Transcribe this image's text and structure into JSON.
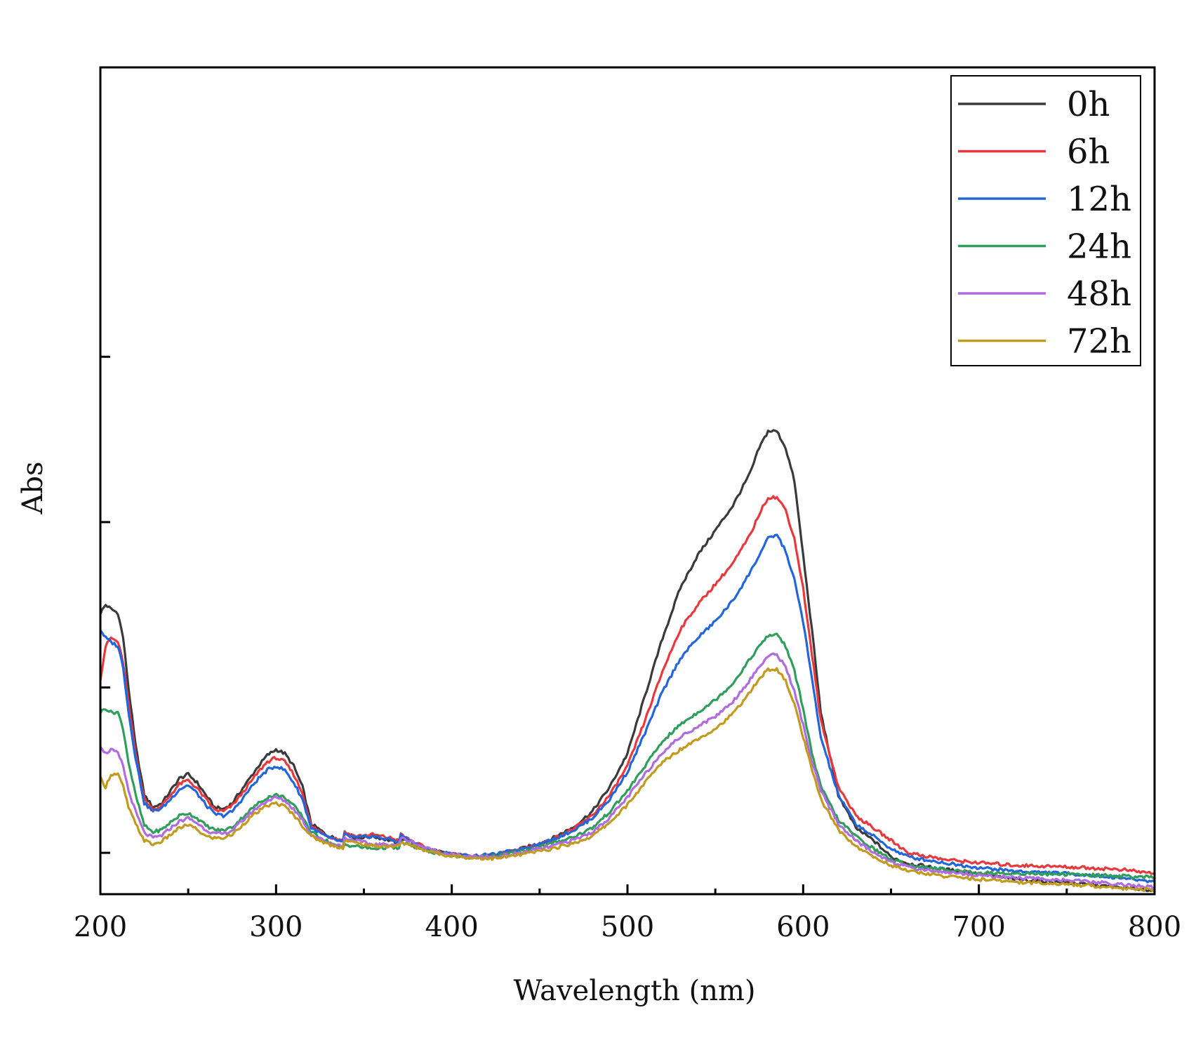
{
  "chart_data": {
    "type": "line",
    "title": "",
    "xlabel": "Wavelength (nm)",
    "ylabel": "Abs",
    "xlim": [
      200,
      800
    ],
    "ylim": [
      0,
      1.0
    ],
    "xticks": [
      200,
      300,
      400,
      500,
      600,
      700,
      800
    ],
    "xtick_labels": [
      "200",
      "300",
      "400",
      "500",
      "600",
      "700",
      "800"
    ],
    "xminor_ticks": [
      250,
      350,
      450,
      550,
      650,
      750
    ],
    "yticks": [
      0.05,
      0.25,
      0.45,
      0.65
    ],
    "ytick_labels": [
      "",
      "",
      "",
      ""
    ],
    "grid": false,
    "legend_position": "top-right",
    "series": [
      {
        "name": "0h",
        "color": "#3a3a3a",
        "x": [
          200,
          203,
          206,
          210,
          213,
          216,
          220,
          225,
          230,
          235,
          240,
          245,
          250,
          255,
          260,
          265,
          270,
          275,
          280,
          285,
          290,
          295,
          300,
          305,
          310,
          315,
          320,
          330,
          338,
          339,
          345,
          355,
          365,
          370,
          371,
          375,
          385,
          395,
          410,
          425,
          440,
          455,
          470,
          480,
          490,
          500,
          510,
          520,
          530,
          540,
          550,
          560,
          570,
          575,
          580,
          585,
          590,
          595,
          600,
          605,
          610,
          620,
          630,
          640,
          650,
          660,
          680,
          700,
          720,
          750,
          780,
          800
        ],
        "y": [
          0.34,
          0.35,
          0.345,
          0.34,
          0.31,
          0.25,
          0.18,
          0.12,
          0.105,
          0.11,
          0.125,
          0.14,
          0.145,
          0.135,
          0.12,
          0.105,
          0.103,
          0.11,
          0.125,
          0.14,
          0.155,
          0.168,
          0.175,
          0.17,
          0.155,
          0.13,
          0.085,
          0.07,
          0.065,
          0.075,
          0.068,
          0.07,
          0.065,
          0.06,
          0.068,
          0.065,
          0.055,
          0.05,
          0.045,
          0.047,
          0.055,
          0.065,
          0.082,
          0.1,
          0.13,
          0.17,
          0.24,
          0.31,
          0.37,
          0.41,
          0.44,
          0.47,
          0.51,
          0.54,
          0.56,
          0.56,
          0.54,
          0.5,
          0.41,
          0.32,
          0.22,
          0.12,
          0.08,
          0.065,
          0.045,
          0.037,
          0.03,
          0.025,
          0.018,
          0.014,
          0.008,
          0.005
        ]
      },
      {
        "name": "6h",
        "color": "#e8383d",
        "x": [
          200,
          203,
          206,
          210,
          213,
          216,
          220,
          225,
          230,
          235,
          240,
          245,
          250,
          255,
          260,
          265,
          270,
          275,
          280,
          285,
          290,
          295,
          300,
          305,
          310,
          315,
          320,
          330,
          338,
          339,
          345,
          355,
          365,
          370,
          371,
          375,
          385,
          395,
          410,
          425,
          440,
          455,
          470,
          480,
          490,
          500,
          510,
          520,
          530,
          540,
          550,
          560,
          570,
          575,
          580,
          585,
          590,
          595,
          600,
          605,
          610,
          620,
          630,
          640,
          650,
          660,
          680,
          700,
          720,
          750,
          780,
          800
        ],
        "y": [
          0.26,
          0.3,
          0.31,
          0.305,
          0.28,
          0.23,
          0.17,
          0.115,
          0.102,
          0.107,
          0.12,
          0.133,
          0.138,
          0.128,
          0.115,
          0.102,
          0.1,
          0.107,
          0.12,
          0.134,
          0.148,
          0.16,
          0.165,
          0.16,
          0.145,
          0.122,
          0.082,
          0.07,
          0.065,
          0.075,
          0.07,
          0.072,
          0.068,
          0.065,
          0.072,
          0.067,
          0.056,
          0.05,
          0.045,
          0.047,
          0.055,
          0.064,
          0.08,
          0.095,
          0.12,
          0.155,
          0.21,
          0.27,
          0.32,
          0.35,
          0.375,
          0.4,
          0.435,
          0.46,
          0.48,
          0.48,
          0.465,
          0.43,
          0.37,
          0.29,
          0.21,
          0.13,
          0.095,
          0.08,
          0.065,
          0.05,
          0.042,
          0.038,
          0.035,
          0.033,
          0.03,
          0.025
        ]
      },
      {
        "name": "12h",
        "color": "#2266dd",
        "x": [
          200,
          203,
          206,
          210,
          213,
          216,
          220,
          225,
          230,
          235,
          240,
          245,
          250,
          255,
          260,
          265,
          270,
          275,
          280,
          285,
          290,
          295,
          300,
          305,
          310,
          315,
          320,
          330,
          338,
          339,
          345,
          355,
          365,
          370,
          371,
          375,
          385,
          395,
          410,
          425,
          440,
          455,
          470,
          480,
          490,
          500,
          510,
          520,
          530,
          540,
          550,
          560,
          570,
          575,
          580,
          585,
          590,
          595,
          600,
          605,
          610,
          620,
          630,
          640,
          650,
          660,
          680,
          700,
          720,
          750,
          780,
          800
        ],
        "y": [
          0.32,
          0.31,
          0.305,
          0.3,
          0.275,
          0.22,
          0.165,
          0.11,
          0.1,
          0.104,
          0.115,
          0.127,
          0.132,
          0.122,
          0.108,
          0.097,
          0.095,
          0.1,
          0.113,
          0.127,
          0.14,
          0.15,
          0.155,
          0.15,
          0.135,
          0.115,
          0.08,
          0.068,
          0.063,
          0.072,
          0.068,
          0.07,
          0.066,
          0.063,
          0.072,
          0.066,
          0.055,
          0.05,
          0.046,
          0.048,
          0.055,
          0.064,
          0.078,
          0.092,
          0.115,
          0.148,
          0.195,
          0.245,
          0.285,
          0.31,
          0.33,
          0.355,
          0.39,
          0.41,
          0.43,
          0.435,
          0.415,
          0.38,
          0.33,
          0.26,
          0.19,
          0.12,
          0.085,
          0.07,
          0.055,
          0.045,
          0.038,
          0.032,
          0.028,
          0.025,
          0.02,
          0.015
        ]
      },
      {
        "name": "24h",
        "color": "#2e9e5a",
        "x": [
          200,
          203,
          206,
          210,
          213,
          216,
          220,
          225,
          230,
          235,
          240,
          245,
          250,
          255,
          260,
          265,
          270,
          275,
          280,
          285,
          290,
          295,
          300,
          305,
          310,
          315,
          320,
          330,
          338,
          339,
          345,
          355,
          365,
          370,
          371,
          375,
          385,
          395,
          410,
          425,
          440,
          455,
          470,
          480,
          490,
          500,
          510,
          520,
          530,
          540,
          550,
          560,
          570,
          575,
          580,
          585,
          590,
          595,
          600,
          605,
          610,
          620,
          630,
          640,
          650,
          660,
          680,
          700,
          720,
          750,
          780,
          800
        ],
        "y": [
          0.22,
          0.225,
          0.22,
          0.22,
          0.2,
          0.16,
          0.12,
          0.083,
          0.075,
          0.078,
          0.087,
          0.095,
          0.098,
          0.092,
          0.083,
          0.078,
          0.077,
          0.081,
          0.091,
          0.101,
          0.11,
          0.117,
          0.12,
          0.117,
          0.107,
          0.094,
          0.075,
          0.063,
          0.055,
          0.06,
          0.058,
          0.055,
          0.057,
          0.055,
          0.063,
          0.06,
          0.053,
          0.048,
          0.045,
          0.046,
          0.052,
          0.06,
          0.07,
          0.08,
          0.1,
          0.125,
          0.155,
          0.185,
          0.205,
          0.22,
          0.235,
          0.255,
          0.285,
          0.3,
          0.312,
          0.315,
          0.3,
          0.27,
          0.225,
          0.17,
          0.13,
          0.09,
          0.07,
          0.055,
          0.042,
          0.035,
          0.03,
          0.026,
          0.025,
          0.024,
          0.022,
          0.02
        ]
      },
      {
        "name": "48h",
        "color": "#b06be0",
        "x": [
          200,
          203,
          206,
          210,
          213,
          216,
          220,
          225,
          230,
          235,
          240,
          245,
          250,
          255,
          260,
          265,
          270,
          275,
          280,
          285,
          290,
          295,
          300,
          305,
          310,
          315,
          320,
          330,
          338,
          339,
          345,
          355,
          365,
          370,
          371,
          375,
          385,
          395,
          410,
          425,
          440,
          455,
          470,
          480,
          490,
          500,
          510,
          520,
          530,
          540,
          550,
          560,
          570,
          575,
          580,
          585,
          590,
          595,
          600,
          605,
          610,
          620,
          630,
          640,
          650,
          660,
          680,
          700,
          720,
          750,
          780,
          800
        ],
        "y": [
          0.18,
          0.17,
          0.175,
          0.17,
          0.155,
          0.125,
          0.1,
          0.074,
          0.068,
          0.071,
          0.08,
          0.088,
          0.092,
          0.086,
          0.078,
          0.073,
          0.073,
          0.077,
          0.087,
          0.097,
          0.106,
          0.113,
          0.117,
          0.113,
          0.103,
          0.09,
          0.072,
          0.062,
          0.058,
          0.068,
          0.065,
          0.06,
          0.06,
          0.06,
          0.068,
          0.065,
          0.056,
          0.05,
          0.045,
          0.045,
          0.05,
          0.057,
          0.066,
          0.075,
          0.093,
          0.117,
          0.145,
          0.172,
          0.19,
          0.203,
          0.215,
          0.233,
          0.26,
          0.275,
          0.288,
          0.29,
          0.275,
          0.245,
          0.205,
          0.16,
          0.125,
          0.085,
          0.065,
          0.05,
          0.04,
          0.032,
          0.027,
          0.023,
          0.02,
          0.017,
          0.012,
          0.008
        ]
      },
      {
        "name": "72h",
        "color": "#c29a1e",
        "x": [
          200,
          203,
          206,
          210,
          213,
          216,
          220,
          225,
          230,
          235,
          240,
          245,
          250,
          255,
          260,
          265,
          270,
          275,
          280,
          285,
          290,
          295,
          300,
          305,
          310,
          315,
          320,
          330,
          338,
          339,
          345,
          355,
          365,
          370,
          371,
          375,
          385,
          395,
          410,
          425,
          440,
          455,
          470,
          480,
          490,
          500,
          510,
          520,
          530,
          540,
          550,
          560,
          570,
          575,
          580,
          585,
          590,
          595,
          600,
          605,
          610,
          620,
          630,
          640,
          650,
          660,
          680,
          700,
          720,
          750,
          780,
          800
        ],
        "y": [
          0.14,
          0.13,
          0.145,
          0.145,
          0.13,
          0.105,
          0.085,
          0.065,
          0.06,
          0.064,
          0.072,
          0.08,
          0.084,
          0.078,
          0.07,
          0.068,
          0.068,
          0.072,
          0.082,
          0.092,
          0.1,
          0.107,
          0.11,
          0.106,
          0.096,
          0.083,
          0.07,
          0.06,
          0.056,
          0.065,
          0.062,
          0.058,
          0.058,
          0.058,
          0.063,
          0.06,
          0.053,
          0.048,
          0.044,
          0.043,
          0.048,
          0.054,
          0.062,
          0.07,
          0.087,
          0.108,
          0.135,
          0.16,
          0.175,
          0.188,
          0.2,
          0.218,
          0.245,
          0.26,
          0.272,
          0.272,
          0.258,
          0.23,
          0.19,
          0.15,
          0.115,
          0.078,
          0.058,
          0.045,
          0.035,
          0.028,
          0.022,
          0.018,
          0.015,
          0.012,
          0.008,
          0.005
        ]
      }
    ]
  }
}
